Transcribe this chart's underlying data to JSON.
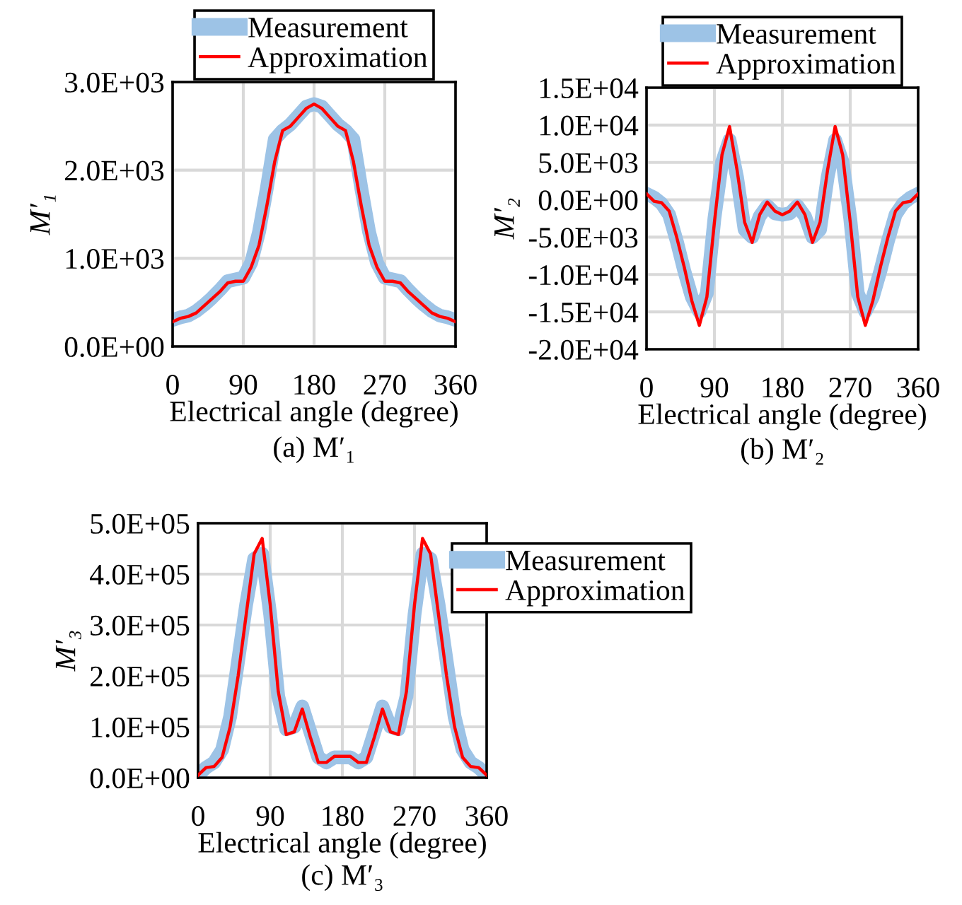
{
  "chart_data": [
    {
      "type": "line",
      "xlabel": "Electrical angle (degree)",
      "ylabel": "M′₁",
      "annotations": [
        "(a) M′₁"
      ],
      "legend": "top",
      "grid": true,
      "marker": "none",
      "line_style": "solid",
      "x": [
        0,
        10,
        20,
        30,
        40,
        50,
        60,
        70,
        80,
        90,
        100,
        110,
        120,
        130,
        140,
        150,
        160,
        170,
        180,
        190,
        200,
        210,
        220,
        230,
        240,
        250,
        260,
        270,
        280,
        290,
        300,
        310,
        320,
        330,
        340,
        350,
        360
      ],
      "xlim": [
        0,
        360
      ],
      "xticks": [
        0,
        90,
        180,
        270,
        360
      ],
      "ylim": [
        0,
        3000
      ],
      "yticks": [
        {
          "value": 0,
          "label": "0.0E+00"
        },
        {
          "value": 1000,
          "label": "1.0E+03"
        },
        {
          "value": 2000,
          "label": "2.0E+03"
        },
        {
          "value": 3000,
          "label": "3.0E+03"
        }
      ],
      "series": [
        {
          "name": "Measurement",
          "color": "#9dc3e6",
          "values": [
            300,
            330,
            350,
            400,
            470,
            550,
            640,
            740,
            760,
            780,
            950,
            1300,
            1800,
            2350,
            2450,
            2520,
            2620,
            2720,
            2750,
            2720,
            2620,
            2520,
            2450,
            2350,
            1800,
            1300,
            950,
            780,
            760,
            740,
            640,
            550,
            470,
            400,
            350,
            330,
            300
          ]
        },
        {
          "name": "Approximation",
          "color": "#ff0000",
          "values": [
            280,
            320,
            340,
            380,
            460,
            540,
            620,
            720,
            740,
            740,
            900,
            1150,
            1600,
            2100,
            2450,
            2500,
            2600,
            2700,
            2750,
            2700,
            2600,
            2500,
            2450,
            2100,
            1600,
            1150,
            900,
            740,
            740,
            720,
            620,
            540,
            460,
            380,
            340,
            320,
            280
          ]
        }
      ]
    },
    {
      "type": "line",
      "xlabel": "Electrical angle (degree)",
      "ylabel": "M′₂",
      "annotations": [
        "(b) M′₂"
      ],
      "legend": "top",
      "grid": true,
      "marker": "none",
      "line_style": "solid",
      "x": [
        0,
        10,
        20,
        30,
        40,
        50,
        60,
        70,
        80,
        90,
        100,
        110,
        120,
        130,
        140,
        150,
        160,
        170,
        180,
        190,
        200,
        210,
        220,
        230,
        240,
        250,
        260,
        270,
        280,
        290,
        300,
        310,
        320,
        330,
        340,
        350,
        360
      ],
      "xlim": [
        0,
        360
      ],
      "xticks": [
        0,
        90,
        180,
        270,
        360
      ],
      "ylim": [
        -20000,
        15000
      ],
      "yticks": [
        {
          "value": -20000,
          "label": "-2.0E+04"
        },
        {
          "value": -15000,
          "label": "-1.5E+04"
        },
        {
          "value": -10000,
          "label": "-1.0E+04"
        },
        {
          "value": -5000,
          "label": "-5.0E+03"
        },
        {
          "value": 0,
          "label": "0.0E+00"
        },
        {
          "value": 5000,
          "label": "5.0E+03"
        },
        {
          "value": 10000,
          "label": "1.0E+04"
        },
        {
          "value": 15000,
          "label": "1.5E+04"
        }
      ],
      "series": [
        {
          "name": "Measurement",
          "color": "#9dc3e6",
          "values": [
            800,
            300,
            -500,
            -2000,
            -5500,
            -9500,
            -13000,
            -15000,
            -12500,
            -2500,
            5000,
            8000,
            3000,
            -4000,
            -5000,
            -2200,
            -800,
            -1800,
            -2000,
            -1800,
            -800,
            -2200,
            -5000,
            -4000,
            3000,
            8000,
            5000,
            -2500,
            -12500,
            -15000,
            -13000,
            -9500,
            -5500,
            -2000,
            -500,
            300,
            800
          ]
        },
        {
          "name": "Approximation",
          "color": "#ff0000",
          "values": [
            800,
            -200,
            -400,
            -1500,
            -5000,
            -9000,
            -13500,
            -16800,
            -13000,
            -3000,
            6000,
            9800,
            4000,
            -3000,
            -5700,
            -2000,
            -300,
            -1500,
            -2000,
            -1500,
            -300,
            -2000,
            -5700,
            -3000,
            4000,
            9800,
            6000,
            -3000,
            -13000,
            -16800,
            -13500,
            -9000,
            -5000,
            -1500,
            -400,
            -200,
            800
          ]
        }
      ]
    },
    {
      "type": "line",
      "xlabel": "Electrical angle (degree)",
      "ylabel": "M′₃",
      "annotations": [
        "(c) M′₃"
      ],
      "legend": "right",
      "grid": true,
      "marker": "none",
      "line_style": "solid",
      "x": [
        0,
        10,
        20,
        30,
        40,
        50,
        60,
        70,
        80,
        90,
        100,
        110,
        120,
        130,
        140,
        150,
        160,
        170,
        180,
        190,
        200,
        210,
        220,
        230,
        240,
        250,
        260,
        270,
        280,
        290,
        300,
        310,
        320,
        330,
        340,
        350,
        360
      ],
      "xlim": [
        0,
        360
      ],
      "xticks": [
        0,
        90,
        180,
        270,
        360
      ],
      "ylim": [
        0,
        500000
      ],
      "yticks": [
        {
          "value": 0,
          "label": "0.0E+00"
        },
        {
          "value": 100000,
          "label": "1.0E+05"
        },
        {
          "value": 200000,
          "label": "2.0E+05"
        },
        {
          "value": 300000,
          "label": "3.0E+05"
        },
        {
          "value": 400000,
          "label": "4.0E+05"
        },
        {
          "value": 500000,
          "label": "5.0E+05"
        }
      ],
      "series": [
        {
          "name": "Measurement",
          "color": "#9dc3e6",
          "values": [
            5000,
            20000,
            30000,
            55000,
            120000,
            230000,
            340000,
            430000,
            440000,
            320000,
            160000,
            95000,
            100000,
            140000,
            90000,
            40000,
            30000,
            40000,
            40000,
            40000,
            30000,
            40000,
            90000,
            140000,
            100000,
            95000,
            160000,
            320000,
            440000,
            430000,
            340000,
            230000,
            120000,
            55000,
            30000,
            20000,
            5000
          ]
        },
        {
          "name": "Approximation",
          "color": "#ff0000",
          "values": [
            5000,
            20000,
            22000,
            40000,
            100000,
            200000,
            320000,
            440000,
            470000,
            340000,
            170000,
            85000,
            90000,
            135000,
            80000,
            30000,
            30000,
            42000,
            42000,
            42000,
            30000,
            30000,
            80000,
            135000,
            90000,
            85000,
            170000,
            340000,
            470000,
            440000,
            320000,
            200000,
            100000,
            40000,
            22000,
            20000,
            5000
          ]
        }
      ]
    }
  ]
}
